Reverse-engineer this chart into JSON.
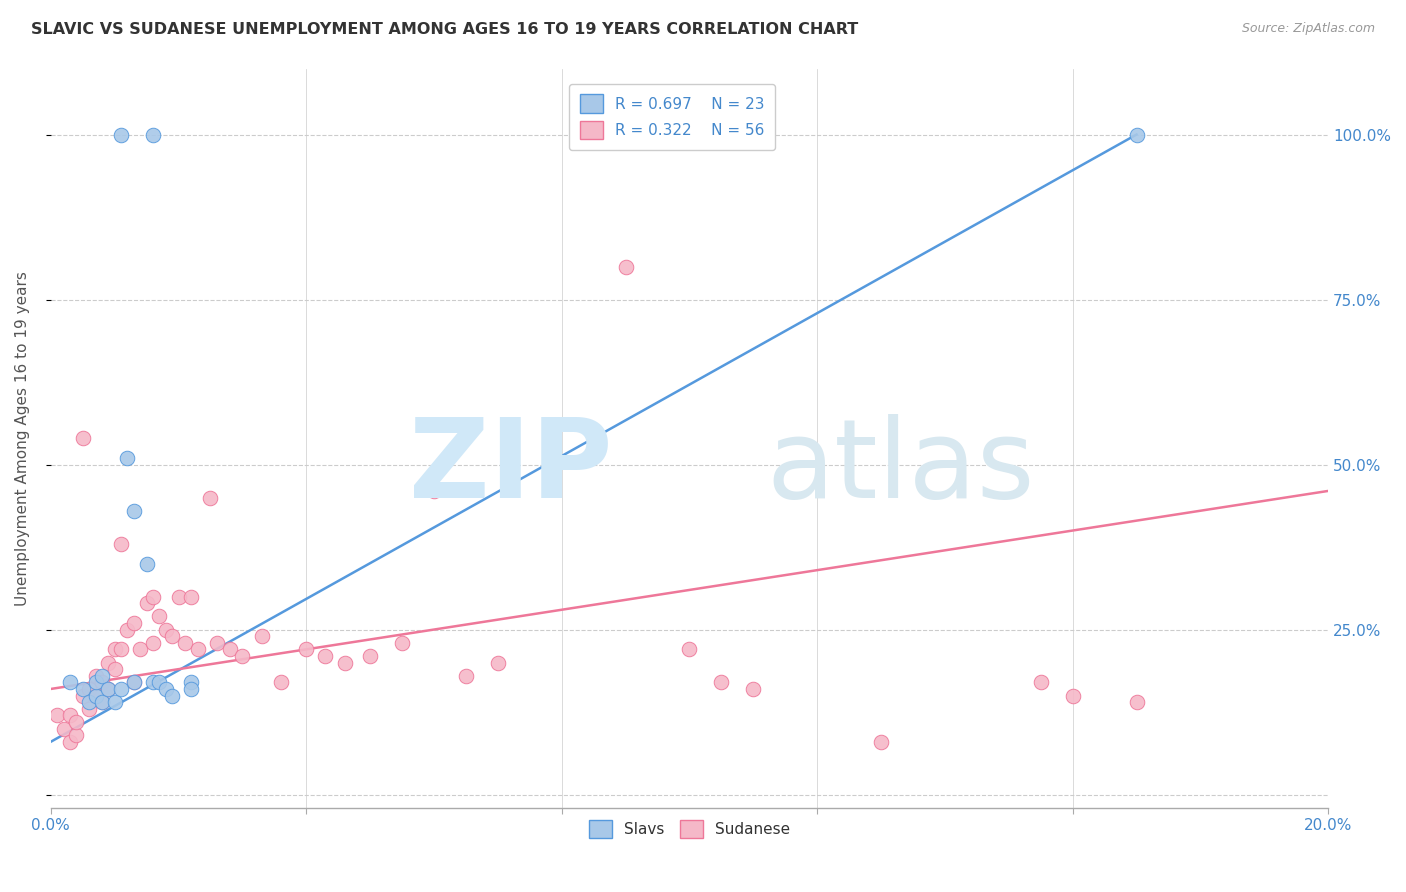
{
  "title": "SLAVIC VS SUDANESE UNEMPLOYMENT AMONG AGES 16 TO 19 YEARS CORRELATION CHART",
  "source": "Source: ZipAtlas.com",
  "ylabel": "Unemployment Among Ages 16 to 19 years",
  "xlim": [
    0.0,
    0.2
  ],
  "ylim": [
    -0.02,
    1.1
  ],
  "xticks": [
    0.0,
    0.04,
    0.08,
    0.12,
    0.16,
    0.2
  ],
  "xtick_labels": [
    "0.0%",
    "",
    "",
    "",
    "",
    "20.0%"
  ],
  "yticks": [
    0.0,
    0.25,
    0.5,
    0.75,
    1.0
  ],
  "ytick_labels": [
    "",
    "25.0%",
    "50.0%",
    "75.0%",
    "100.0%"
  ],
  "slavic_color": "#a8c8e8",
  "sudanese_color": "#f5b8c8",
  "slavic_line_color": "#5599dd",
  "sudanese_line_color": "#ee7799",
  "legend_R_slavic": "R = 0.697",
  "legend_N_slavic": "N = 23",
  "legend_R_sudanese": "R = 0.322",
  "legend_N_sudanese": "N = 56",
  "slavic_scatter_x": [
    0.003,
    0.005,
    0.006,
    0.007,
    0.007,
    0.008,
    0.008,
    0.009,
    0.01,
    0.011,
    0.011,
    0.012,
    0.013,
    0.013,
    0.015,
    0.016,
    0.016,
    0.017,
    0.018,
    0.019,
    0.022,
    0.022,
    0.17
  ],
  "slavic_scatter_y": [
    0.17,
    0.16,
    0.14,
    0.15,
    0.17,
    0.18,
    0.14,
    0.16,
    0.14,
    0.16,
    1.0,
    0.51,
    0.43,
    0.17,
    0.35,
    1.0,
    0.17,
    0.17,
    0.16,
    0.15,
    0.17,
    0.16,
    1.0
  ],
  "sudanese_scatter_x": [
    0.001,
    0.002,
    0.003,
    0.003,
    0.004,
    0.004,
    0.005,
    0.005,
    0.006,
    0.006,
    0.007,
    0.007,
    0.008,
    0.008,
    0.009,
    0.009,
    0.01,
    0.01,
    0.011,
    0.011,
    0.012,
    0.013,
    0.013,
    0.014,
    0.015,
    0.016,
    0.016,
    0.017,
    0.018,
    0.019,
    0.02,
    0.021,
    0.022,
    0.023,
    0.025,
    0.026,
    0.028,
    0.03,
    0.033,
    0.036,
    0.04,
    0.043,
    0.046,
    0.05,
    0.055,
    0.06,
    0.065,
    0.07,
    0.09,
    0.1,
    0.105,
    0.11,
    0.13,
    0.155,
    0.16,
    0.17
  ],
  "sudanese_scatter_y": [
    0.12,
    0.1,
    0.08,
    0.12,
    0.09,
    0.11,
    0.54,
    0.15,
    0.13,
    0.16,
    0.15,
    0.18,
    0.17,
    0.14,
    0.16,
    0.2,
    0.19,
    0.22,
    0.38,
    0.22,
    0.25,
    0.26,
    0.17,
    0.22,
    0.29,
    0.23,
    0.3,
    0.27,
    0.25,
    0.24,
    0.3,
    0.23,
    0.3,
    0.22,
    0.45,
    0.23,
    0.22,
    0.21,
    0.24,
    0.17,
    0.22,
    0.21,
    0.2,
    0.21,
    0.23,
    0.46,
    0.18,
    0.2,
    0.8,
    0.22,
    0.17,
    0.16,
    0.08,
    0.17,
    0.15,
    0.14
  ],
  "slavic_trend_x": [
    0.0,
    0.17
  ],
  "slavic_trend_y": [
    0.08,
    1.0
  ],
  "sudanese_trend_x": [
    0.0,
    0.2
  ],
  "sudanese_trend_y": [
    0.16,
    0.46
  ],
  "bg_color": "#ffffff",
  "grid_color": "#cccccc",
  "axis_label_color": "#4488cc",
  "title_color": "#333333",
  "source_color": "#999999",
  "watermark_zip_color": "#d0e8f8",
  "watermark_atlas_color": "#d8e8f0"
}
